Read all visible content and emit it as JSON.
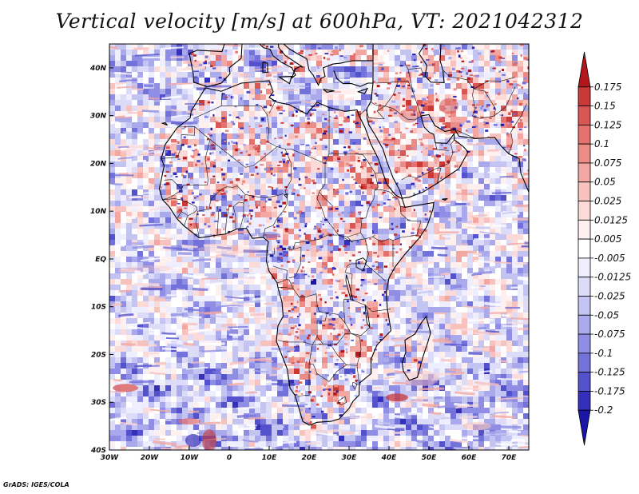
{
  "title": "Vertical velocity [m/s] at 600hPa, VT: 2021042312",
  "credit": "GrADS: IGES/COLA",
  "map": {
    "lon_ticks": [
      "30W",
      "20W",
      "10W",
      "0",
      "10E",
      "20E",
      "30E",
      "40E",
      "50E",
      "60E",
      "70E"
    ],
    "lat_ticks": [
      "40N",
      "30N",
      "20N",
      "10N",
      "EQ",
      "10S",
      "20S",
      "30S",
      "40S"
    ],
    "lon_range": [
      -30,
      75
    ],
    "lat_range": [
      -40,
      45
    ]
  },
  "colorbar": {
    "levels": [
      "0.175",
      "0.15",
      "0.125",
      "0.1",
      "0.075",
      "0.05",
      "0.025",
      "0.0125",
      "0.005",
      "-0.005",
      "-0.0125",
      "-0.025",
      "-0.05",
      "-0.075",
      "-0.1",
      "-0.125",
      "-0.175",
      "-0.2"
    ],
    "colors": [
      "#b2181b",
      "#c93a37",
      "#d85653",
      "#e3716d",
      "#ec8c87",
      "#f2a7a2",
      "#f7c1bd",
      "#fbdad7",
      "#fef0ef",
      "#ffffff",
      "#eeeeff",
      "#dcdcf9",
      "#c4c4f2",
      "#aaa9ec",
      "#8f8ee4",
      "#7371da",
      "#5451cc",
      "#3430bb",
      "#1a17a8"
    ]
  }
}
